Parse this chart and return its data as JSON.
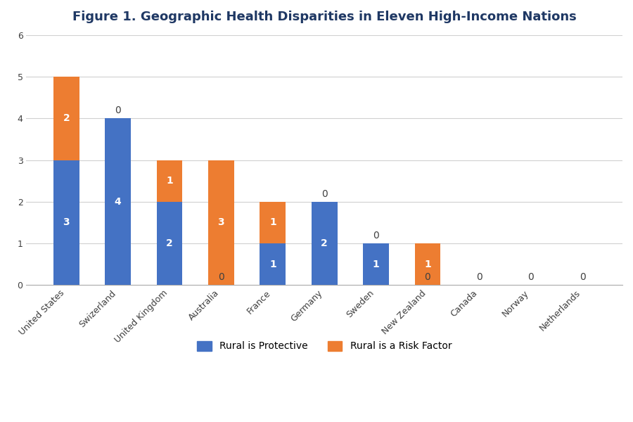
{
  "title": "Figure 1. Geographic Health Disparities in Eleven High-Income Nations",
  "categories": [
    "United States",
    "Swizerland",
    "United Kingdom",
    "Australia",
    "France",
    "Germany",
    "Sweden",
    "New Zealand",
    "Canada",
    "Norway",
    "Netherlands"
  ],
  "protective": [
    3,
    4,
    2,
    0,
    1,
    2,
    1,
    0,
    0,
    0,
    0
  ],
  "risk": [
    2,
    0,
    1,
    3,
    1,
    0,
    0,
    1,
    0,
    0,
    0
  ],
  "protective_color": "#4472C4",
  "risk_color": "#ED7D31",
  "background_color": "#FFFFFF",
  "ylim": [
    0,
    6
  ],
  "yticks": [
    0,
    1,
    2,
    3,
    4,
    5,
    6
  ],
  "legend_labels": [
    "Rural is Protective",
    "Rural is a Risk Factor"
  ],
  "title_color": "#1F3864",
  "title_fontsize": 13,
  "label_fontsize": 10,
  "tick_fontsize": 9,
  "legend_fontsize": 10,
  "bar_width": 0.5
}
